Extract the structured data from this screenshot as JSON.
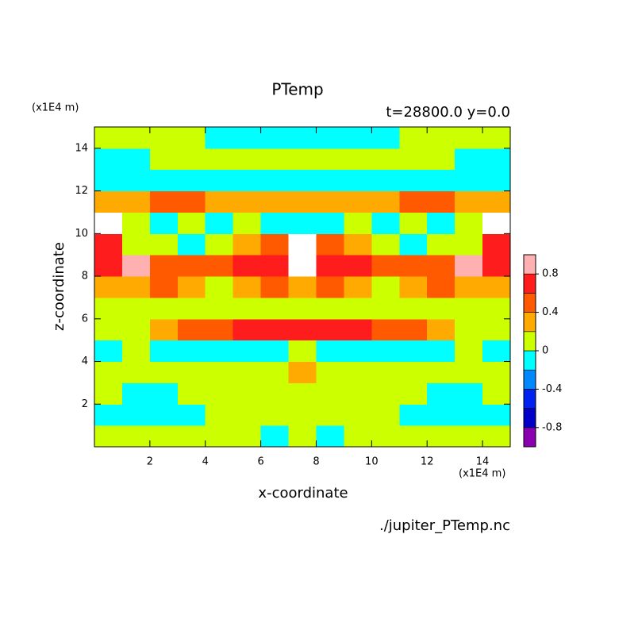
{
  "chart_data": {
    "type": "contour",
    "title": "PTemp",
    "subtitle": "t=28800.0 y=0.0",
    "xlabel": "x-coordinate",
    "ylabel": "z-coordinate",
    "x_unit": "(x1E4 m)",
    "y_unit": "(x1E4 m)",
    "source": "./jupiter_PTemp.nc",
    "xlim": [
      0,
      15
    ],
    "ylim": [
      0,
      15
    ],
    "xticks": [
      2,
      4,
      6,
      8,
      10,
      12,
      14
    ],
    "yticks": [
      2,
      4,
      6,
      8,
      10,
      12,
      14
    ],
    "x": [
      0.5,
      1.5,
      2.5,
      3.5,
      4.5,
      5.5,
      6.5,
      7.5,
      8.5,
      9.5,
      10.5,
      11.5,
      12.5,
      13.5,
      14.5
    ],
    "y": [
      0.5,
      1.5,
      2.5,
      3.5,
      4.5,
      5.5,
      6.5,
      7.5,
      8.5,
      9.5,
      10.5,
      11.5,
      12.5,
      13.5,
      14.5
    ],
    "z": [
      [
        0.1,
        0.1,
        0.1,
        0.1,
        0.1,
        0.1,
        -0.1,
        0.1,
        -0.1,
        0.1,
        0.1,
        0.1,
        0.1,
        0.1,
        0.1
      ],
      [
        -0.1,
        -0.1,
        -0.1,
        -0.1,
        0.1,
        0.1,
        0.1,
        0.1,
        0.1,
        0.1,
        0.1,
        -0.1,
        -0.1,
        -0.1,
        -0.1
      ],
      [
        0.1,
        -0.1,
        -0.1,
        0.1,
        0.1,
        0.1,
        0.1,
        0.1,
        0.1,
        0.1,
        0.1,
        0.1,
        -0.1,
        -0.1,
        0.1
      ],
      [
        0.1,
        0.1,
        0.1,
        0.1,
        0.1,
        0.1,
        0.1,
        0.3,
        0.1,
        0.1,
        0.1,
        0.1,
        0.1,
        0.1,
        0.1
      ],
      [
        -0.1,
        0.1,
        -0.1,
        -0.1,
        -0.1,
        -0.1,
        -0.1,
        0.1,
        -0.1,
        -0.1,
        -0.1,
        -0.1,
        -0.1,
        0.1,
        -0.1
      ],
      [
        0.1,
        0.1,
        0.3,
        0.5,
        0.5,
        0.7,
        0.7,
        0.7,
        0.7,
        0.7,
        0.5,
        0.5,
        0.3,
        0.1,
        0.1
      ],
      [
        0.1,
        0.1,
        0.1,
        0.1,
        0.1,
        0.1,
        0.1,
        0.1,
        0.1,
        0.1,
        0.1,
        0.1,
        0.1,
        0.1,
        0.1
      ],
      [
        0.3,
        0.3,
        0.5,
        0.3,
        0.1,
        0.3,
        0.5,
        0.3,
        0.5,
        0.3,
        0.1,
        0.3,
        0.5,
        0.3,
        0.3
      ],
      [
        0.7,
        0.9,
        0.5,
        0.5,
        0.5,
        0.7,
        0.7,
        1.1,
        0.7,
        0.7,
        0.5,
        0.5,
        0.5,
        0.9,
        0.7
      ],
      [
        0.7,
        0.1,
        0.1,
        -0.1,
        0.1,
        0.3,
        0.5,
        1.1,
        0.5,
        0.3,
        0.1,
        -0.1,
        0.1,
        0.1,
        0.7
      ],
      [
        1.1,
        0.1,
        -0.1,
        0.1,
        -0.1,
        0.1,
        -0.1,
        -0.1,
        -0.1,
        0.1,
        -0.1,
        0.1,
        -0.1,
        0.1,
        1.1
      ],
      [
        0.3,
        0.3,
        0.5,
        0.5,
        0.3,
        0.3,
        0.3,
        0.3,
        0.3,
        0.3,
        0.3,
        0.5,
        0.5,
        0.3,
        0.3
      ],
      [
        -0.1,
        -0.1,
        -0.1,
        -0.1,
        -0.1,
        -0.1,
        -0.1,
        -0.1,
        -0.1,
        -0.1,
        -0.1,
        -0.1,
        -0.1,
        -0.1,
        -0.1
      ],
      [
        -0.1,
        -0.1,
        0.1,
        0.1,
        0.1,
        0.1,
        0.1,
        0.1,
        0.1,
        0.1,
        0.1,
        0.1,
        0.1,
        -0.1,
        -0.1
      ],
      [
        0.1,
        0.1,
        0.1,
        0.1,
        -0.1,
        -0.1,
        -0.1,
        -0.1,
        -0.1,
        -0.1,
        -0.1,
        0.1,
        0.1,
        0.1,
        0.1
      ]
    ],
    "levels": [
      -1,
      -0.8,
      -0.6,
      -0.4,
      -0.2,
      0,
      0.2,
      0.4,
      0.6,
      0.8,
      1
    ],
    "colors": [
      "#8a00b0",
      "#0000c8",
      "#0022ee",
      "#0088ff",
      "#00ffff",
      "#ccff00",
      "#ffaa00",
      "#ff5a00",
      "#ff1c1c",
      "#ffb0b0"
    ],
    "over_color": "#ffffff",
    "cbar_ticks": [
      0.8,
      0.4,
      0,
      -0.4,
      -0.8
    ]
  }
}
